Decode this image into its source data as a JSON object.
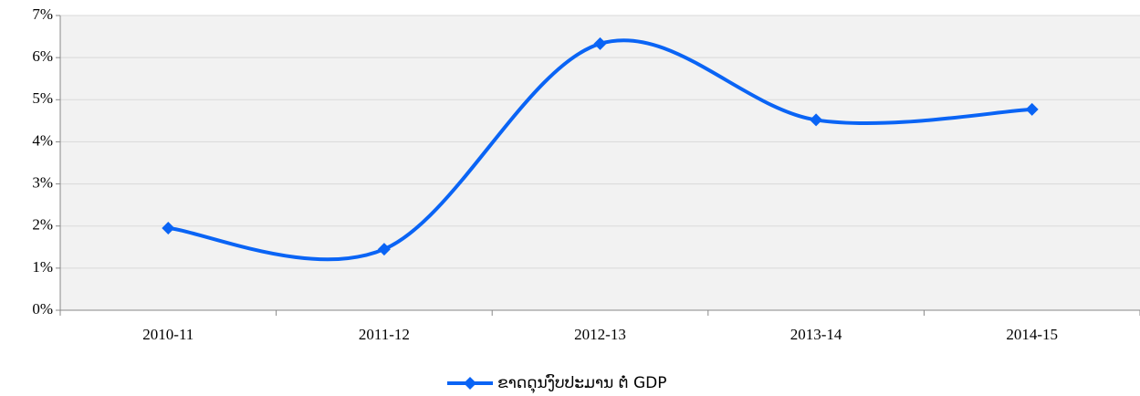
{
  "chart_data": {
    "type": "line",
    "categories": [
      "2010-11",
      "2011-12",
      "2012-13",
      "2013-14",
      "2014-15"
    ],
    "series": [
      {
        "name": "ຂາດດຸນງົບປະມານ ຕໍ່ GDP",
        "color": "#0a64f5",
        "values": [
          1.95,
          1.45,
          6.33,
          4.52,
          4.77
        ]
      }
    ],
    "ylim": [
      0,
      7
    ],
    "yticks": [
      {
        "value": 0,
        "label": "0%"
      },
      {
        "value": 1,
        "label": "1%"
      },
      {
        "value": 2,
        "label": "2%"
      },
      {
        "value": 3,
        "label": "3%"
      },
      {
        "value": 4,
        "label": "4%"
      },
      {
        "value": 5,
        "label": "5%"
      },
      {
        "value": 6,
        "label": "6%"
      },
      {
        "value": 7,
        "label": "7%"
      }
    ],
    "grid": true,
    "smooth": true,
    "legend": "bottom"
  }
}
